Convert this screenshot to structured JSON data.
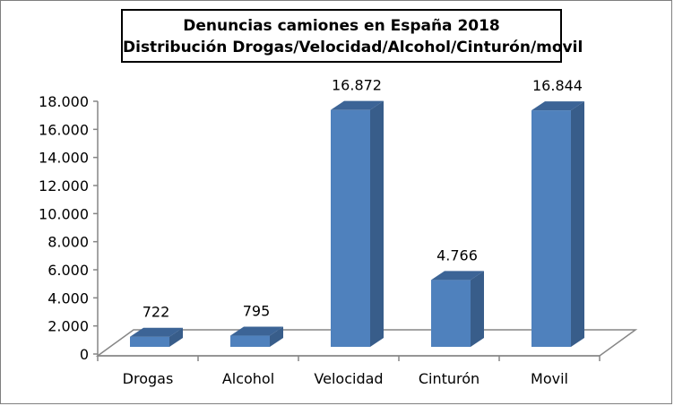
{
  "chart_data": {
    "type": "bar",
    "style": "3d-column",
    "title": "Denuncias camiones en España 2018",
    "subtitle": "Distribución  Drogas/Velocidad/Alcohol/Cinturón/movil",
    "xlabel": "",
    "ylabel": "",
    "categories": [
      "Drogas",
      "Alcohol",
      "Velocidad",
      "Cinturón",
      "Movil"
    ],
    "values": [
      722,
      795,
      16872,
      4766,
      16844
    ],
    "data_labels": [
      "722",
      "795",
      "16.872",
      "4.766",
      "16.844"
    ],
    "ylim": [
      0,
      18000
    ],
    "yticks": [
      0,
      2000,
      4000,
      6000,
      8000,
      10000,
      12000,
      14000,
      16000,
      18000
    ],
    "ytick_labels": [
      "0",
      "2.000",
      "4.000",
      "6.000",
      "8.000",
      "10.000",
      "12.000",
      "14.000",
      "16.000",
      "18.000"
    ],
    "grid": false,
    "legend": "none",
    "colors": {
      "bar_front": "#4f81bd",
      "bar_side": "#385d8a",
      "bar_top": "#3c6496",
      "axis": "#868686"
    }
  }
}
